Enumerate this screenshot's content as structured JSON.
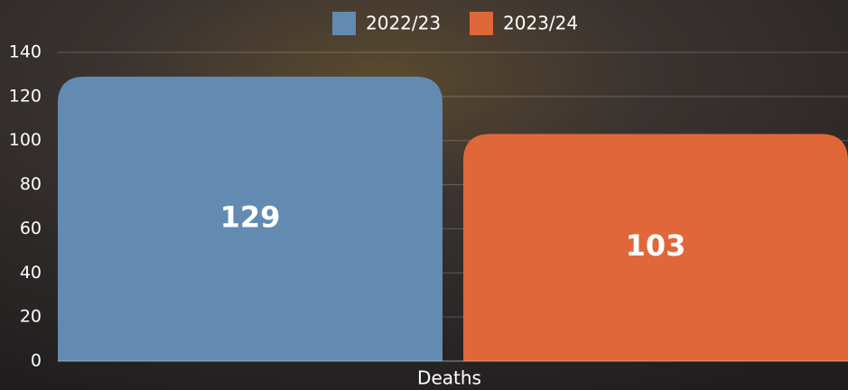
{
  "chart_data": {
    "type": "bar",
    "categories": [
      "Deaths"
    ],
    "series": [
      {
        "name": "2022/23",
        "color": "#638bb1",
        "values": [
          129
        ]
      },
      {
        "name": "2023/24",
        "color": "#e0673a",
        "values": [
          103
        ]
      }
    ],
    "ylim": [
      0,
      140
    ],
    "yticks": [
      0,
      20,
      40,
      60,
      80,
      100,
      120,
      140
    ],
    "grid": true
  }
}
